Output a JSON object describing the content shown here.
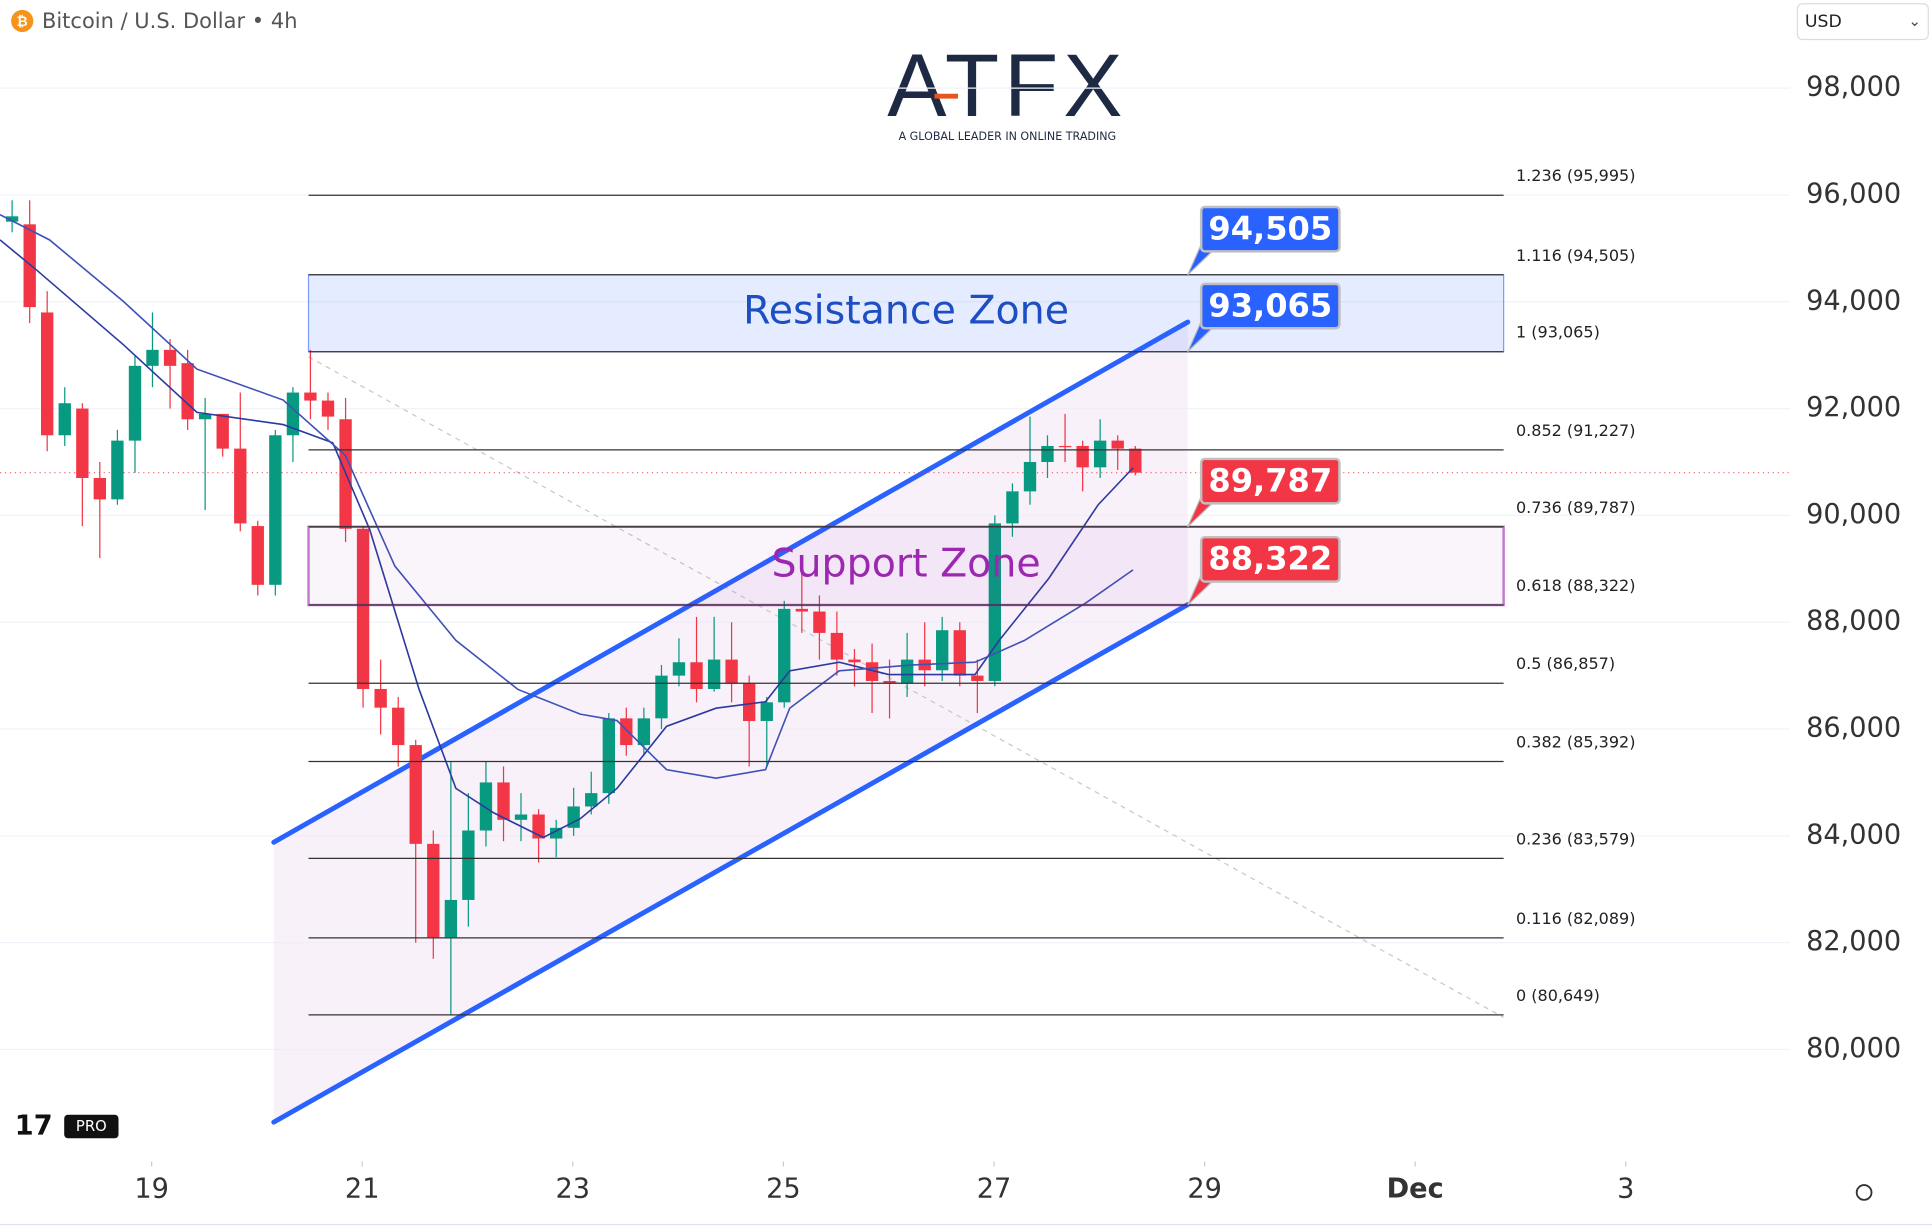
{
  "chart_data": {
    "type": "candlestick",
    "title": "Bitcoin / U.S. Dollar",
    "interval": "4h",
    "currency": "USD",
    "brand": "ATFX",
    "brand_tagline": "A GLOBAL LEADER IN ONLINE TRADING",
    "platform_badge": "PRO",
    "xlim": [
      17.56,
      34.56
    ],
    "xticks": [
      19,
      21,
      23,
      25,
      27,
      29,
      {
        "value": 31,
        "label": "Dec"
      },
      {
        "value": 33,
        "label": "3"
      }
    ],
    "ylim": [
      77900,
      99650
    ],
    "yticks": [
      {
        "value": 80000,
        "label": "80,000"
      },
      {
        "value": 82000,
        "label": "82,000"
      },
      {
        "value": 84000,
        "label": "84,000"
      },
      {
        "value": 86000,
        "label": "86,000"
      },
      {
        "value": 88000,
        "label": "88,000"
      },
      {
        "value": 90000,
        "label": "90,000"
      },
      {
        "value": 92000,
        "label": "92,000"
      },
      {
        "value": 94000,
        "label": "94,000"
      },
      {
        "value": 96000,
        "label": "96,000"
      },
      {
        "value": 98000,
        "label": "98,000"
      }
    ],
    "grid": true,
    "up_color": "#089981",
    "down_color": "#f23645",
    "x": [
      17.675,
      17.842,
      18.008,
      18.175,
      18.342,
      18.508,
      18.675,
      18.842,
      19.008,
      19.175,
      19.342,
      19.508,
      19.675,
      19.842,
      20.008,
      20.175,
      20.342,
      20.508,
      20.675,
      20.842,
      21.008,
      21.175,
      21.342,
      21.508,
      21.675,
      21.842,
      22.008,
      22.175,
      22.342,
      22.508,
      22.675,
      22.842,
      23.008,
      23.175,
      23.342,
      23.508,
      23.675,
      23.842,
      24.008,
      24.175,
      24.342,
      24.508,
      24.675,
      24.842,
      25.008,
      25.175,
      25.342,
      25.508,
      25.675,
      25.842,
      26.008,
      26.175,
      26.342,
      26.508,
      26.675,
      26.842,
      27.008,
      27.175,
      27.342,
      27.508,
      27.675,
      27.842,
      28.008,
      28.175,
      28.342
    ],
    "open": [
      95500,
      95450,
      93800,
      91500,
      92000,
      90700,
      90300,
      91400,
      92800,
      93100,
      92850,
      91800,
      91900,
      91250,
      89800,
      88700,
      91500,
      92300,
      92150,
      91800,
      89750,
      86750,
      86400,
      85700,
      83850,
      82100,
      82800,
      84100,
      85000,
      84300,
      84400,
      83950,
      84150,
      84550,
      84800,
      86200,
      85700,
      86200,
      87000,
      87250,
      86750,
      87300,
      86850,
      86150,
      86500,
      88250,
      88200,
      87800,
      87300,
      87250,
      86900,
      86850,
      87300,
      87100,
      87850,
      87000,
      86900,
      89850,
      90450,
      91000,
      91300,
      91300,
      90900,
      91400,
      91250
    ],
    "high": [
      95900,
      95900,
      94200,
      92400,
      92100,
      91000,
      91600,
      93000,
      93800,
      93300,
      93100,
      92200,
      91900,
      92300,
      89900,
      91600,
      92400,
      93100,
      92300,
      92200,
      89800,
      87300,
      86600,
      85800,
      84100,
      85400,
      84800,
      85400,
      85300,
      84800,
      84500,
      84300,
      84900,
      85200,
      86300,
      86400,
      86400,
      87200,
      87700,
      88100,
      88100,
      88000,
      87000,
      86600,
      88400,
      88900,
      88500,
      88200,
      87500,
      87600,
      87300,
      87800,
      88000,
      88100,
      88000,
      87300,
      90000,
      90600,
      91850,
      91500,
      91900,
      91400,
      91800,
      91500,
      91300
    ],
    "low": [
      95300,
      93600,
      91200,
      91300,
      89800,
      89200,
      90200,
      90800,
      92400,
      92000,
      91600,
      90100,
      91100,
      89700,
      88500,
      88500,
      91000,
      91800,
      91600,
      89500,
      86400,
      85900,
      85300,
      82000,
      81700,
      80650,
      82300,
      83800,
      83900,
      83900,
      83500,
      83600,
      84000,
      84400,
      84600,
      85500,
      85500,
      86000,
      86800,
      86500,
      86700,
      86500,
      85300,
      85300,
      86400,
      87800,
      87300,
      87000,
      86800,
      86300,
      86200,
      86600,
      86800,
      86900,
      86800,
      86300,
      86800,
      89600,
      90200,
      90700,
      91000,
      90450,
      90700,
      90850,
      90750
    ],
    "close": [
      95600,
      93900,
      91500,
      92100,
      90700,
      90300,
      91400,
      92800,
      93100,
      92800,
      91800,
      91900,
      91250,
      89850,
      88700,
      91500,
      92300,
      92150,
      91850,
      89750,
      86750,
      86400,
      85700,
      83850,
      82100,
      82800,
      84100,
      85000,
      84300,
      84400,
      83950,
      84150,
      84550,
      84800,
      86200,
      85700,
      86200,
      87000,
      87250,
      86750,
      87300,
      86850,
      86150,
      86500,
      88250,
      88200,
      87800,
      87300,
      87250,
      86900,
      86850,
      87300,
      87100,
      87850,
      87000,
      86900,
      89850,
      90450,
      91000,
      91300,
      91280,
      90900,
      91400,
      91250,
      90800
    ],
    "series": [
      {
        "color": "#2b3a9e",
        "x": [
          17.56,
          17.91,
          18.73,
          19.43,
          20.25,
          20.72,
          21.07,
          21.54,
          21.89,
          22.25,
          22.72,
          23.07,
          23.42,
          23.89,
          24.36,
          24.83,
          25.06,
          25.53,
          26.0,
          26.47,
          26.82,
          27.05,
          27.52,
          27.99,
          28.32
        ],
        "values": [
          95160,
          94590,
          93200,
          91930,
          91700,
          91360,
          89740,
          86740,
          84890,
          84430,
          83970,
          84320,
          84890,
          86050,
          86390,
          86510,
          87090,
          87250,
          87020,
          87020,
          87020,
          87660,
          88820,
          90200,
          90890
        ]
      },
      {
        "color": "#3f51b5",
        "x": [
          17.56,
          18.03,
          18.73,
          19.43,
          20.25,
          20.84,
          21.31,
          21.89,
          22.48,
          23.07,
          23.42,
          23.89,
          24.36,
          24.83,
          25.06,
          25.53,
          26.23,
          26.82,
          27.29,
          27.87,
          28.32
        ],
        "values": [
          95630,
          95160,
          94010,
          92740,
          92160,
          91120,
          89050,
          87660,
          86740,
          86280,
          86160,
          85240,
          85080,
          85240,
          86390,
          87090,
          87200,
          87250,
          87660,
          88360,
          88980
        ]
      }
    ],
    "fib": {
      "x": [
        20.49,
        31.84
      ],
      "color": "#333333",
      "levels": [
        {
          "value": 95995,
          "label": "1.236 (95,995)"
        },
        {
          "value": 94505,
          "label": "1.116 (94,505)"
        },
        {
          "value": 93065,
          "label": "1 (93,065)"
        },
        {
          "value": 91227,
          "label": "0.852 (91,227)"
        },
        {
          "value": 89787,
          "label": "0.736 (89,787)"
        },
        {
          "value": 88322,
          "label": "0.618 (88,322)"
        },
        {
          "value": 86857,
          "label": "0.5 (86,857)"
        },
        {
          "value": 85392,
          "label": "0.382 (85,392)"
        },
        {
          "value": 83579,
          "label": "0.236 (83,579)"
        },
        {
          "value": 82089,
          "label": "0.116 (82,089)"
        },
        {
          "value": 80649,
          "label": "0 (80,649)"
        }
      ]
    },
    "zones": [
      {
        "label": "Resistance Zone",
        "low": 93065,
        "high": 94505,
        "x": [
          20.49,
          31.84
        ],
        "color": "#2962ff"
      },
      {
        "label": "Support Zone",
        "low": 88322,
        "high": 89787,
        "x": [
          20.49,
          31.84
        ],
        "color": "#9c27b0"
      }
    ],
    "callouts": [
      {
        "value": 94505,
        "label": "94,505",
        "color": "#2962ff"
      },
      {
        "value": 93065,
        "label": "93,065",
        "color": "#2962ff"
      },
      {
        "value": 89787,
        "label": "89,787",
        "color": "#f23645"
      },
      {
        "value": 88322,
        "label": "88,322",
        "color": "#f23645"
      }
    ],
    "channel": {
      "color": "#2962ff",
      "upper": {
        "x": [
          20.16,
          28.84
        ],
        "values": [
          83880,
          93620
        ]
      },
      "lower": {
        "x": [
          20.16,
          28.84
        ],
        "values": [
          78640,
          88330
        ]
      }
    },
    "trendline": {
      "x": [
        20.49,
        31.84
      ],
      "values": [
        92970,
        80600
      ]
    }
  }
}
